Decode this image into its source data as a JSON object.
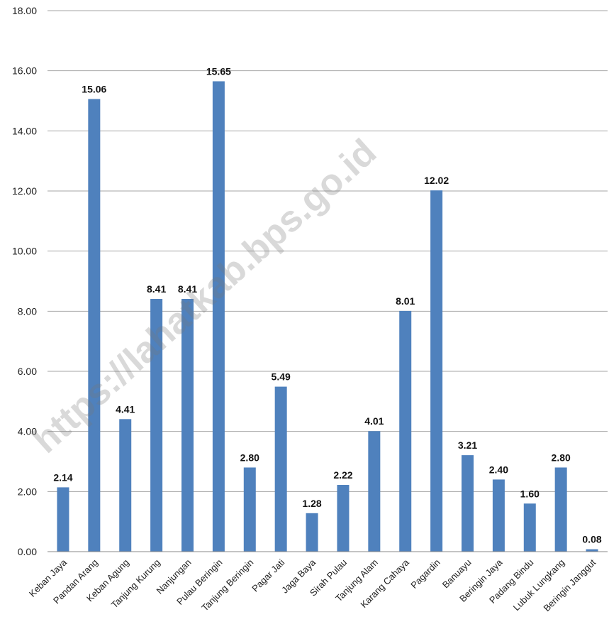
{
  "chart_data": {
    "type": "bar",
    "categories": [
      "Keban Jaya",
      "Pandan Arang",
      "Keban Agung",
      "Tanjung Kurung",
      "Nanjungan",
      "Pulau Beringin",
      "Tanjung Beringin",
      "Pagar Jati",
      "Jaga Baya",
      "Sirah Pulau",
      "Tanjung Alam",
      "Karang Cahaya",
      "Pagardin",
      "Banuayu",
      "Beringin Jaya",
      "Padang Bindu",
      "Lubuk Lungkang",
      "Beringin Janggut"
    ],
    "values": [
      2.14,
      15.06,
      4.41,
      8.41,
      8.41,
      15.65,
      2.8,
      5.49,
      1.28,
      2.22,
      4.01,
      8.01,
      12.02,
      3.21,
      2.4,
      1.6,
      2.8,
      0.08
    ],
    "data_labels": [
      "2.14",
      "15.06",
      "4.41",
      "8.41",
      "8.41",
      "15.65",
      "2.80",
      "5.49",
      "1.28",
      "2.22",
      "4.01",
      "8.01",
      "12.02",
      "3.21",
      "2.40",
      "1.60",
      "2.80",
      "0.08"
    ],
    "y_ticks": [
      "0.00",
      "2.00",
      "4.00",
      "6.00",
      "8.00",
      "10.00",
      "12.00",
      "14.00",
      "16.00",
      "18.00"
    ],
    "ylim": [
      0,
      18
    ],
    "grid": true,
    "bar_color": "#4F81BD",
    "grid_color": "#a6a6a6",
    "title": "",
    "xlabel": "",
    "ylabel": ""
  },
  "watermark": "https://lahatkab.bps.go.id"
}
